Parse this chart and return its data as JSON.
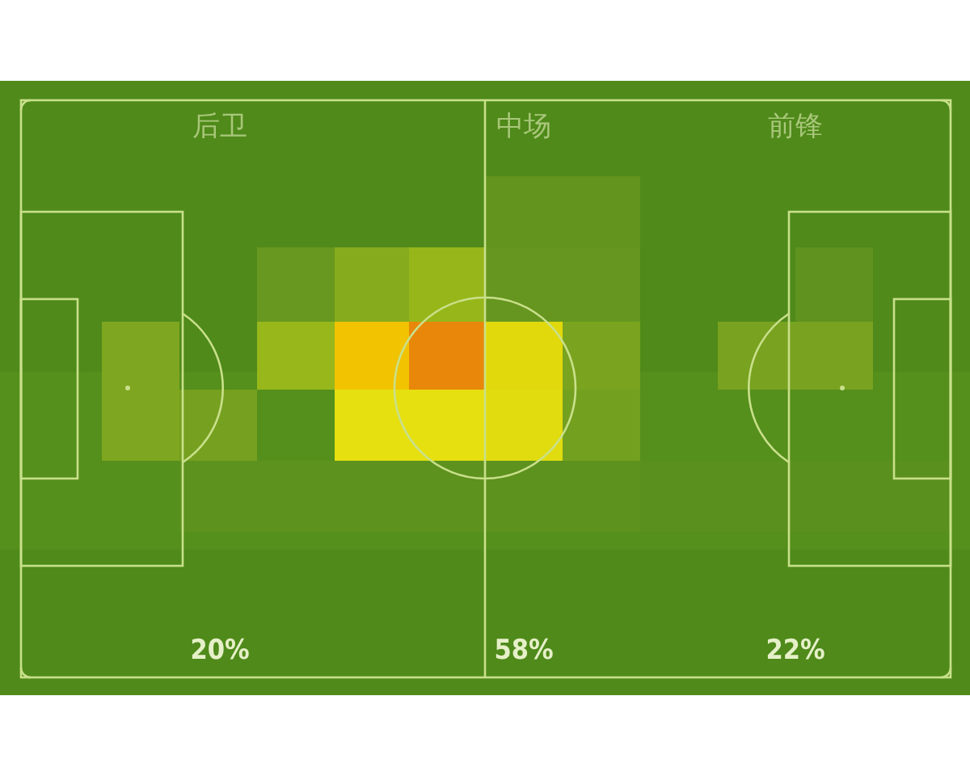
{
  "chart_data": {
    "type": "other",
    "categories": [
      "后卫",
      "中场",
      "前锋"
    ],
    "values": [
      20,
      58,
      22
    ],
    "value_labels": [
      "20%",
      "58%",
      "22%"
    ]
  }
}
